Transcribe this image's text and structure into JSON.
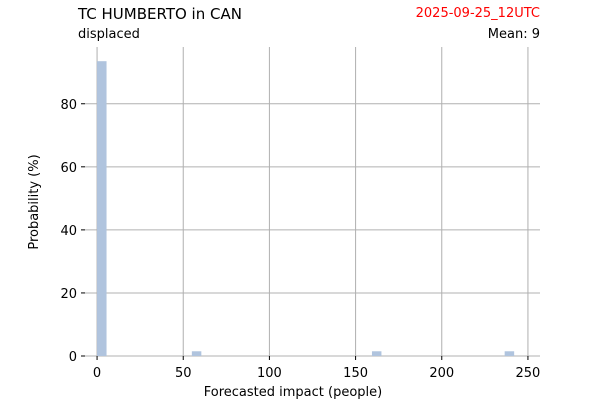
{
  "header": {
    "title": "TC HUMBERTO in CAN",
    "subtitle": "displaced",
    "date": "2025-09-25_12UTC",
    "mean_label": "Mean: 9"
  },
  "colors": {
    "bar": "#b0c4de",
    "grid": "#b0b0b0",
    "date": "#ff0000"
  },
  "chart_data": {
    "type": "bar",
    "title": "TC HUMBERTO in CAN",
    "subtitle": "displaced",
    "xlabel": "Forecasted impact (people)",
    "ylabel": "Probability (%)",
    "xlim": [
      -7,
      257
    ],
    "ylim": [
      0,
      98
    ],
    "xticks": [
      0,
      50,
      100,
      150,
      200,
      250
    ],
    "yticks": [
      0,
      20,
      40,
      60,
      80
    ],
    "grid": true,
    "bins": [
      {
        "x0": 0,
        "x1": 5.5,
        "value": 93.5
      },
      {
        "x0": 55,
        "x1": 60.5,
        "value": 1.5
      },
      {
        "x0": 159.5,
        "x1": 165,
        "value": 1.5
      },
      {
        "x0": 236.5,
        "x1": 242,
        "value": 1.5
      }
    ]
  }
}
